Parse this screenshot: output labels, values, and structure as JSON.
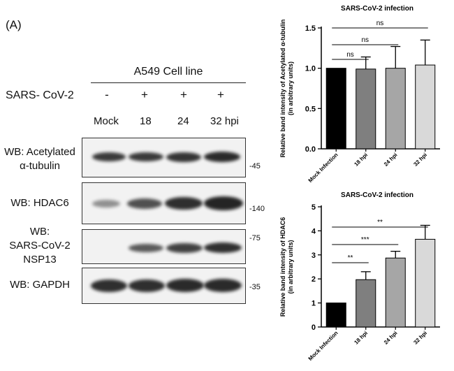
{
  "panel_label": "(A)",
  "western_blot": {
    "cell_line": "A549 Cell line",
    "infection_label": "SARS- CoV-2",
    "infection_signs": [
      "-",
      "+",
      "+",
      "+"
    ],
    "lanes": [
      "Mock",
      "18",
      "24",
      "32 hpi"
    ],
    "blots": [
      {
        "label_lines": [
          "WB: Acetylated",
          "α-tubulin"
        ],
        "mw": "-45",
        "intensity": [
          1.0,
          0.99,
          1.0,
          1.05
        ]
      },
      {
        "label_lines": [
          "WB: HDAC6"
        ],
        "mw": "-140",
        "intensity": [
          0.45,
          0.75,
          0.95,
          1.0
        ]
      },
      {
        "label_lines": [
          "WB:",
          "SARS-CoV-2",
          "NSP13"
        ],
        "mw": "-75",
        "intensity": [
          0.0,
          0.8,
          0.9,
          1.0
        ]
      },
      {
        "label_lines": [
          "WB: GAPDH"
        ],
        "mw": "-35",
        "intensity": [
          1.0,
          1.0,
          1.0,
          1.0
        ]
      }
    ]
  },
  "chart_data": [
    {
      "type": "bar",
      "title": "SARS-CoV-2 infection",
      "ylabel": "Relative band intensity of Acetylated α-tubulin (in arbitrary units)",
      "ylabel_lines": [
        "Relative band intensity of Acetylated α-tubulin",
        "(in arbitrary units)"
      ],
      "categories": [
        "Mock Infection",
        "18 hpi",
        "24 hpi",
        "32 hpi"
      ],
      "values": [
        1.0,
        0.99,
        1.0,
        1.04
      ],
      "errors": [
        0.0,
        0.15,
        0.27,
        0.31
      ],
      "colors": [
        "#000000",
        "#7f7f7f",
        "#a6a6a6",
        "#d9d9d9"
      ],
      "ylim": [
        0,
        1.5
      ],
      "yticks": [
        "0.0",
        "0.5",
        "1.0",
        "1.5"
      ],
      "significance": [
        {
          "from": 0,
          "to": 1,
          "label": "ns"
        },
        {
          "from": 0,
          "to": 2,
          "label": "ns"
        },
        {
          "from": 0,
          "to": 3,
          "label": "ns"
        }
      ],
      "grid": false
    },
    {
      "type": "bar",
      "title": "SARS-CoV-2 infection",
      "ylabel": "Relative band intensity of HDAC6 (in arbitrary units)",
      "ylabel_lines": [
        "Relative band intensity of  HDAC6",
        "(in arbitrary units)"
      ],
      "categories": [
        "Mock Infection",
        "18 hpi",
        "24 hpi",
        "32 hpi"
      ],
      "values": [
        1.0,
        1.97,
        2.87,
        3.65
      ],
      "errors": [
        0.0,
        0.33,
        0.28,
        0.58
      ],
      "colors": [
        "#000000",
        "#7f7f7f",
        "#a6a6a6",
        "#d9d9d9"
      ],
      "ylim": [
        0,
        5
      ],
      "yticks": [
        "0",
        "1",
        "2",
        "3",
        "4",
        "5"
      ],
      "significance": [
        {
          "from": 0,
          "to": 1,
          "label": "**"
        },
        {
          "from": 0,
          "to": 2,
          "label": "***"
        },
        {
          "from": 0,
          "to": 3,
          "label": "**"
        }
      ],
      "grid": false
    }
  ]
}
